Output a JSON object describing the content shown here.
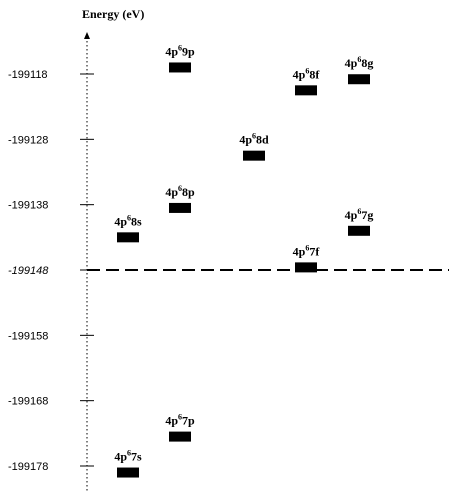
{
  "chart_data": {
    "type": "scatter",
    "ylabel": "Energy (eV)",
    "yticks": [
      "-199118",
      "-199128",
      "-199138",
      "-199148",
      "-199158",
      "-199168",
      "-199178"
    ],
    "reference_line": {
      "y": -199148,
      "label": "-199148",
      "style": "dashed"
    },
    "levels": [
      {
        "label": {
          "base": "4p",
          "sup": "6",
          "rest": "7s"
        },
        "column": 1,
        "y": -199179
      },
      {
        "label": {
          "base": "4p",
          "sup": "6",
          "rest": "7p"
        },
        "column": 2,
        "y": -199173.5
      },
      {
        "label": {
          "base": "4p",
          "sup": "6",
          "rest": "8s"
        },
        "column": 1,
        "y": -199143
      },
      {
        "label": {
          "base": "4p",
          "sup": "6",
          "rest": "8p"
        },
        "column": 2,
        "y": -199138.5
      },
      {
        "label": {
          "base": "4p",
          "sup": "6",
          "rest": "9p"
        },
        "column": 2,
        "y": -199117
      },
      {
        "label": {
          "base": "4p",
          "sup": "6",
          "rest": "8d"
        },
        "column": 3,
        "y": -199130.5
      },
      {
        "label": {
          "base": "4p",
          "sup": "6",
          "rest": "7f"
        },
        "column": 4,
        "y": -199147.6
      },
      {
        "label": {
          "base": "4p",
          "sup": "6",
          "rest": "8f"
        },
        "column": 4,
        "y": -199120.5
      },
      {
        "label": {
          "base": "4p",
          "sup": "6",
          "rest": "7g"
        },
        "column": 5,
        "y": -199142
      },
      {
        "label": {
          "base": "4p",
          "sup": "6",
          "rest": "8g"
        },
        "column": 5,
        "y": -199118.8
      }
    ],
    "grid": false
  },
  "colors": {
    "axis": "#000000",
    "marker": "#000000",
    "background": "#ffffff"
  }
}
